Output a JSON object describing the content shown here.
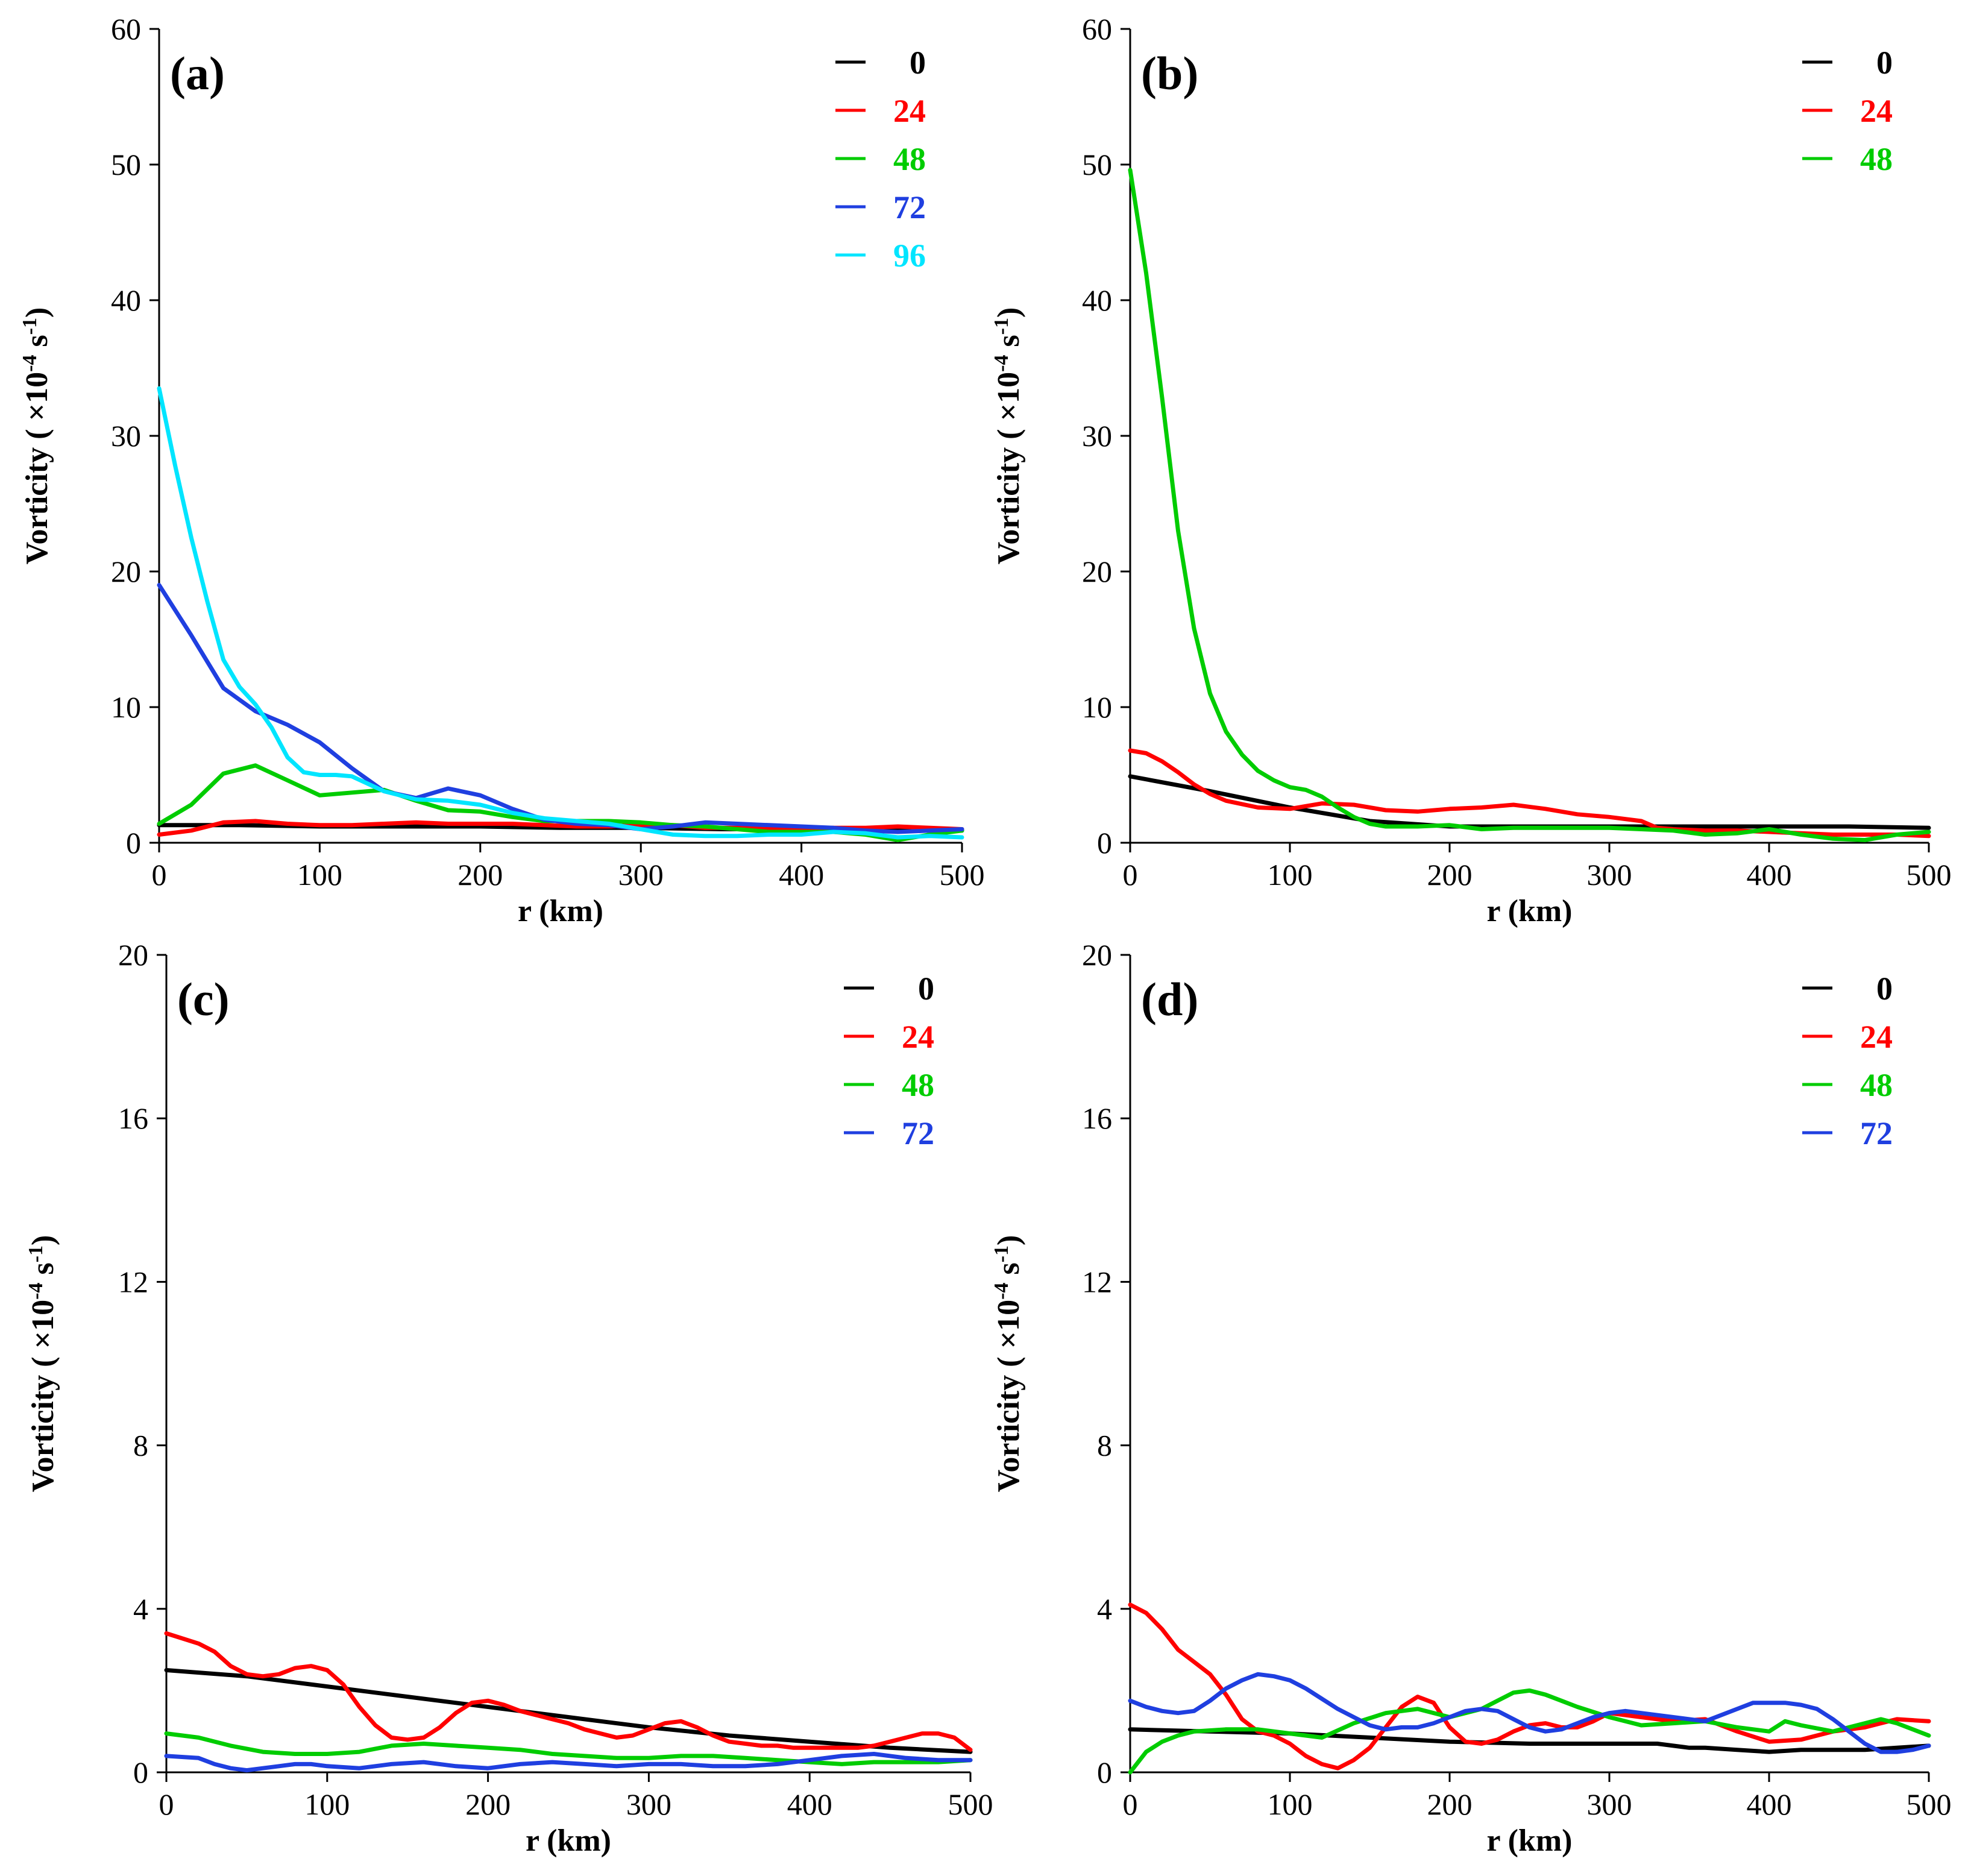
{
  "colors": {
    "0": "#000000",
    "24": "#ff0000",
    "48": "#00cc00",
    "72": "#1f3fe0",
    "96": "#00e5ff"
  },
  "ylabel_main": "Vorticity",
  "ylabel_units": "×10",
  "ylabel_exp1": "-4",
  "ylabel_s": "s",
  "ylabel_exp2": "-1",
  "chart_data": [
    {
      "type": "line",
      "panel": "(a)",
      "xlabel": "r (km)",
      "ylabel": "Vorticity (×10-4 s-1)",
      "xlim": [
        0,
        500
      ],
      "ylim": [
        0,
        60
      ],
      "xticks": [
        "0",
        "100",
        "200",
        "300",
        "400",
        "500"
      ],
      "yticks": [
        "0",
        "10",
        "20",
        "30",
        "40",
        "50",
        "60"
      ],
      "legend": [
        "0",
        "24",
        "48",
        "72",
        "96"
      ],
      "series": [
        {
          "name": "0",
          "x": [
            0,
            50,
            100,
            150,
            200,
            250,
            300,
            350,
            400,
            450,
            500
          ],
          "values": [
            1.3,
            1.3,
            1.2,
            1.2,
            1.2,
            1.1,
            1.1,
            1.0,
            1.0,
            1.0,
            0.9
          ]
        },
        {
          "name": "24",
          "x": [
            0,
            20,
            40,
            60,
            80,
            100,
            120,
            140,
            160,
            180,
            200,
            220,
            240,
            260,
            280,
            300,
            320,
            340,
            360,
            380,
            400,
            420,
            440,
            460,
            480,
            500
          ],
          "values": [
            0.6,
            0.9,
            1.5,
            1.6,
            1.4,
            1.3,
            1.3,
            1.4,
            1.5,
            1.4,
            1.4,
            1.4,
            1.3,
            1.2,
            1.2,
            1.3,
            1.3,
            1.1,
            1.1,
            1.0,
            1.0,
            1.1,
            1.1,
            1.2,
            1.1,
            1.0
          ]
        },
        {
          "name": "48",
          "x": [
            0,
            20,
            40,
            60,
            80,
            100,
            120,
            140,
            160,
            180,
            200,
            220,
            240,
            260,
            280,
            300,
            320,
            340,
            360,
            380,
            400,
            420,
            440,
            460,
            480,
            500
          ],
          "values": [
            1.4,
            2.8,
            5.1,
            5.7,
            4.6,
            3.5,
            3.7,
            3.9,
            3.1,
            2.4,
            2.3,
            1.9,
            1.6,
            1.6,
            1.6,
            1.5,
            1.3,
            1.2,
            1.0,
            0.8,
            0.8,
            0.8,
            0.6,
            0.2,
            0.6,
            0.9
          ]
        },
        {
          "name": "72",
          "x": [
            0,
            20,
            40,
            60,
            80,
            100,
            120,
            140,
            160,
            180,
            200,
            220,
            240,
            260,
            280,
            300,
            320,
            340,
            360,
            380,
            400,
            420,
            440,
            460,
            480,
            500
          ],
          "values": [
            19.0,
            15.3,
            11.4,
            9.7,
            8.7,
            7.4,
            5.5,
            3.8,
            3.3,
            4.0,
            3.5,
            2.5,
            1.7,
            1.4,
            1.3,
            1.0,
            1.2,
            1.5,
            1.4,
            1.3,
            1.2,
            1.1,
            0.9,
            0.8,
            0.9,
            1.0
          ]
        },
        {
          "name": "96",
          "x": [
            0,
            10,
            20,
            30,
            40,
            50,
            60,
            70,
            80,
            90,
            100,
            110,
            120,
            140,
            160,
            180,
            200,
            220,
            240,
            260,
            280,
            300,
            320,
            340,
            360,
            380,
            400,
            420,
            440,
            460,
            480,
            500
          ],
          "values": [
            33.5,
            27.8,
            22.5,
            17.8,
            13.5,
            11.5,
            10.2,
            8.5,
            6.3,
            5.2,
            5.0,
            5.0,
            4.9,
            3.8,
            3.2,
            3.1,
            2.8,
            2.2,
            1.8,
            1.6,
            1.4,
            1.0,
            0.6,
            0.5,
            0.5,
            0.6,
            0.6,
            0.8,
            0.7,
            0.4,
            0.5,
            0.4
          ]
        }
      ]
    },
    {
      "type": "line",
      "panel": "(b)",
      "xlabel": "r (km)",
      "ylabel": "Vorticity (×10-4 s-1)",
      "xlim": [
        0,
        500
      ],
      "ylim": [
        0,
        60
      ],
      "xticks": [
        "0",
        "100",
        "200",
        "300",
        "400",
        "500"
      ],
      "yticks": [
        "0",
        "10",
        "20",
        "30",
        "40",
        "50",
        "60"
      ],
      "legend": [
        "0",
        "24",
        "48"
      ],
      "series": [
        {
          "name": "0",
          "x": [
            0,
            50,
            100,
            150,
            200,
            250,
            300,
            350,
            400,
            450,
            500
          ],
          "values": [
            4.9,
            3.8,
            2.6,
            1.6,
            1.2,
            1.2,
            1.2,
            1.2,
            1.2,
            1.2,
            1.1
          ]
        },
        {
          "name": "24",
          "x": [
            0,
            10,
            20,
            30,
            40,
            50,
            60,
            80,
            100,
            120,
            140,
            160,
            180,
            200,
            220,
            240,
            260,
            280,
            300,
            320,
            330,
            340,
            360,
            380,
            400,
            420,
            440,
            460,
            480,
            500
          ],
          "values": [
            6.8,
            6.6,
            6.0,
            5.2,
            4.3,
            3.6,
            3.1,
            2.6,
            2.5,
            2.9,
            2.8,
            2.4,
            2.3,
            2.5,
            2.6,
            2.8,
            2.5,
            2.1,
            1.9,
            1.6,
            1.1,
            1.0,
            0.9,
            0.9,
            0.8,
            0.7,
            0.6,
            0.6,
            0.6,
            0.5
          ]
        },
        {
          "name": "48",
          "x": [
            0,
            10,
            20,
            30,
            40,
            50,
            60,
            70,
            80,
            90,
            100,
            110,
            120,
            130,
            140,
            150,
            160,
            180,
            200,
            220,
            240,
            260,
            280,
            300,
            320,
            340,
            360,
            380,
            400,
            420,
            440,
            460,
            480,
            500
          ],
          "values": [
            49.6,
            42.0,
            32.8,
            23.0,
            15.8,
            11.0,
            8.2,
            6.5,
            5.3,
            4.6,
            4.1,
            3.9,
            3.4,
            2.6,
            1.9,
            1.4,
            1.2,
            1.2,
            1.3,
            1.0,
            1.1,
            1.1,
            1.1,
            1.1,
            1.0,
            0.9,
            0.6,
            0.7,
            1.0,
            0.6,
            0.3,
            0.2,
            0.6,
            0.8
          ]
        }
      ]
    },
    {
      "type": "line",
      "panel": "(c)",
      "xlabel": "r (km)",
      "ylabel": "Vorticity (×10-4 s-1)",
      "xlim": [
        0,
        500
      ],
      "ylim": [
        0,
        20
      ],
      "xticks": [
        "0",
        "100",
        "200",
        "300",
        "400",
        "500"
      ],
      "yticks": [
        "0",
        "4",
        "8",
        "12",
        "16",
        "20"
      ],
      "legend": [
        "0",
        "24",
        "48",
        "72"
      ],
      "series": [
        {
          "name": "0",
          "x": [
            0,
            50,
            100,
            150,
            200,
            250,
            300,
            350,
            400,
            450,
            500
          ],
          "values": [
            2.5,
            2.35,
            2.1,
            1.85,
            1.6,
            1.35,
            1.1,
            0.9,
            0.75,
            0.6,
            0.5
          ]
        },
        {
          "name": "24",
          "x": [
            0,
            20,
            30,
            40,
            50,
            60,
            70,
            80,
            90,
            100,
            110,
            120,
            130,
            140,
            150,
            160,
            170,
            180,
            190,
            200,
            210,
            220,
            230,
            240,
            250,
            260,
            270,
            280,
            290,
            300,
            310,
            320,
            330,
            340,
            350,
            360,
            370,
            380,
            390,
            400,
            410,
            420,
            430,
            440,
            450,
            460,
            470,
            480,
            490,
            500
          ],
          "values": [
            3.4,
            3.15,
            2.95,
            2.6,
            2.4,
            2.35,
            2.4,
            2.55,
            2.6,
            2.5,
            2.15,
            1.6,
            1.15,
            0.85,
            0.8,
            0.85,
            1.1,
            1.45,
            1.7,
            1.75,
            1.65,
            1.5,
            1.4,
            1.3,
            1.2,
            1.05,
            0.95,
            0.85,
            0.9,
            1.05,
            1.2,
            1.25,
            1.1,
            0.9,
            0.75,
            0.7,
            0.65,
            0.65,
            0.6,
            0.6,
            0.6,
            0.6,
            0.6,
            0.65,
            0.75,
            0.85,
            0.95,
            0.95,
            0.85,
            0.55
          ]
        },
        {
          "name": "48",
          "x": [
            0,
            20,
            40,
            60,
            80,
            100,
            120,
            140,
            160,
            180,
            200,
            220,
            240,
            260,
            280,
            300,
            320,
            340,
            360,
            380,
            400,
            420,
            440,
            460,
            480,
            500
          ],
          "values": [
            0.95,
            0.85,
            0.65,
            0.5,
            0.45,
            0.45,
            0.5,
            0.65,
            0.7,
            0.65,
            0.6,
            0.55,
            0.45,
            0.4,
            0.35,
            0.35,
            0.4,
            0.4,
            0.35,
            0.3,
            0.25,
            0.2,
            0.25,
            0.25,
            0.25,
            0.3
          ]
        },
        {
          "name": "72",
          "x": [
            0,
            20,
            30,
            40,
            50,
            60,
            70,
            80,
            90,
            100,
            120,
            140,
            160,
            180,
            200,
            220,
            240,
            260,
            280,
            300,
            320,
            340,
            360,
            380,
            400,
            420,
            440,
            460,
            480,
            500
          ],
          "values": [
            0.4,
            0.35,
            0.2,
            0.1,
            0.05,
            0.1,
            0.15,
            0.2,
            0.2,
            0.15,
            0.1,
            0.2,
            0.25,
            0.15,
            0.1,
            0.2,
            0.25,
            0.2,
            0.15,
            0.2,
            0.2,
            0.15,
            0.15,
            0.2,
            0.3,
            0.4,
            0.45,
            0.35,
            0.3,
            0.3
          ]
        }
      ]
    },
    {
      "type": "line",
      "panel": "(d)",
      "xlabel": "r (km)",
      "ylabel": "Vorticity (×10-4 s-1)",
      "xlim": [
        0,
        500
      ],
      "ylim": [
        0,
        20
      ],
      "xticks": [
        "0",
        "100",
        "200",
        "300",
        "400",
        "500"
      ],
      "yticks": [
        "0",
        "4",
        "8",
        "12",
        "16",
        "20"
      ],
      "legend": [
        "0",
        "24",
        "48",
        "72"
      ],
      "series": [
        {
          "name": "0",
          "x": [
            0,
            50,
            100,
            150,
            200,
            250,
            300,
            330,
            350,
            360,
            380,
            400,
            420,
            440,
            460,
            480,
            500
          ],
          "values": [
            1.05,
            1.0,
            0.95,
            0.85,
            0.75,
            0.7,
            0.7,
            0.7,
            0.6,
            0.6,
            0.55,
            0.5,
            0.55,
            0.55,
            0.55,
            0.6,
            0.65
          ]
        },
        {
          "name": "24",
          "x": [
            0,
            10,
            20,
            30,
            40,
            50,
            60,
            70,
            80,
            90,
            100,
            110,
            120,
            130,
            140,
            150,
            160,
            170,
            180,
            190,
            200,
            210,
            220,
            230,
            240,
            250,
            260,
            270,
            280,
            290,
            300,
            320,
            340,
            360,
            380,
            400,
            420,
            440,
            460,
            480,
            500
          ],
          "values": [
            4.1,
            3.9,
            3.5,
            3.0,
            2.7,
            2.4,
            1.9,
            1.3,
            1.0,
            0.9,
            0.7,
            0.4,
            0.2,
            0.1,
            0.3,
            0.6,
            1.1,
            1.6,
            1.85,
            1.7,
            1.1,
            0.75,
            0.7,
            0.8,
            1.0,
            1.15,
            1.2,
            1.1,
            1.1,
            1.25,
            1.45,
            1.35,
            1.25,
            1.3,
            1.0,
            0.75,
            0.8,
            1.0,
            1.1,
            1.3,
            1.25
          ]
        },
        {
          "name": "48",
          "x": [
            0,
            10,
            20,
            30,
            40,
            60,
            80,
            100,
            120,
            140,
            160,
            180,
            200,
            220,
            230,
            240,
            250,
            260,
            270,
            280,
            300,
            320,
            340,
            360,
            380,
            400,
            410,
            420,
            440,
            460,
            470,
            480,
            500
          ],
          "values": [
            0.0,
            0.5,
            0.75,
            0.9,
            1.0,
            1.05,
            1.05,
            0.95,
            0.85,
            1.2,
            1.45,
            1.55,
            1.35,
            1.55,
            1.75,
            1.95,
            2.0,
            1.9,
            1.75,
            1.6,
            1.35,
            1.15,
            1.2,
            1.25,
            1.1,
            1.0,
            1.25,
            1.15,
            1.0,
            1.2,
            1.3,
            1.2,
            0.9
          ]
        },
        {
          "name": "72",
          "x": [
            0,
            10,
            20,
            30,
            40,
            50,
            60,
            70,
            80,
            90,
            100,
            110,
            120,
            130,
            140,
            150,
            160,
            170,
            180,
            190,
            200,
            210,
            220,
            230,
            240,
            250,
            260,
            270,
            280,
            290,
            300,
            310,
            320,
            340,
            360,
            380,
            390,
            400,
            410,
            420,
            430,
            440,
            450,
            460,
            470,
            480,
            490,
            500
          ],
          "values": [
            1.75,
            1.6,
            1.5,
            1.45,
            1.5,
            1.75,
            2.05,
            2.25,
            2.4,
            2.35,
            2.25,
            2.05,
            1.8,
            1.55,
            1.35,
            1.15,
            1.05,
            1.1,
            1.1,
            1.2,
            1.35,
            1.5,
            1.55,
            1.5,
            1.3,
            1.1,
            1.0,
            1.05,
            1.2,
            1.35,
            1.45,
            1.5,
            1.45,
            1.35,
            1.25,
            1.55,
            1.7,
            1.7,
            1.7,
            1.65,
            1.55,
            1.3,
            1.0,
            0.7,
            0.5,
            0.5,
            0.55,
            0.65
          ]
        }
      ]
    }
  ]
}
